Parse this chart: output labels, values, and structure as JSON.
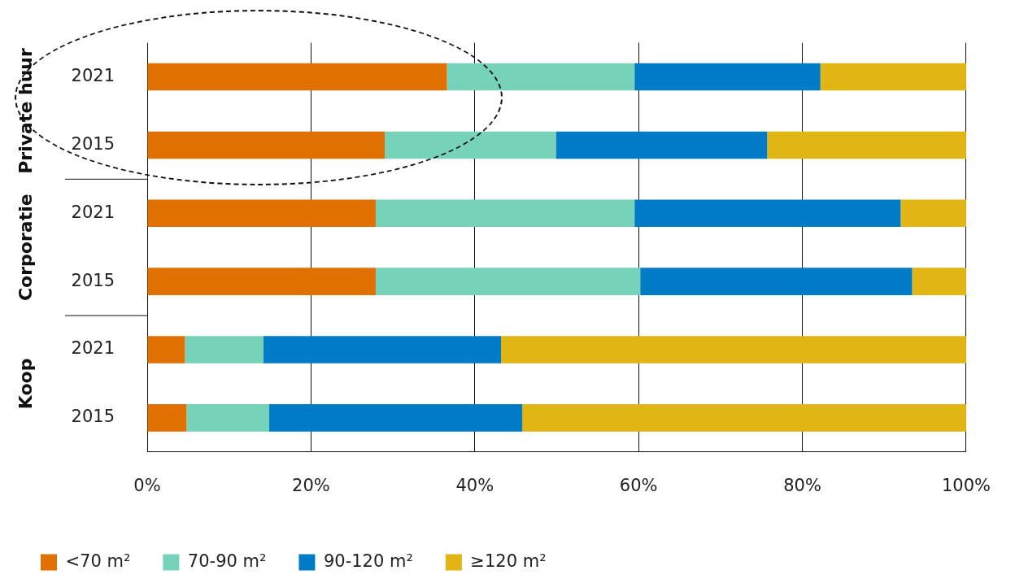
{
  "chart_data": {
    "type": "bar",
    "orientation": "horizontal",
    "stacked": true,
    "categories": [
      "2021",
      "2015",
      "2021",
      "2015",
      "2021",
      "2015"
    ],
    "series": [
      {
        "name": "<70 m²",
        "color": "#e07000",
        "values": [
          36.6,
          29.0,
          27.9,
          27.9,
          4.6,
          4.8
        ]
      },
      {
        "name": "70-90 m²",
        "color": "#76d3b9",
        "values": [
          22.9,
          20.9,
          31.6,
          32.3,
          9.6,
          10.1
        ]
      },
      {
        "name": "90-120 m²",
        "color": "#007cc7",
        "values": [
          22.7,
          25.8,
          32.5,
          33.2,
          29.0,
          30.9
        ]
      },
      {
        "name": "≥120 m²",
        "color": "#e0b514",
        "values": [
          17.8,
          24.3,
          8.0,
          6.6,
          56.8,
          54.2
        ]
      }
    ],
    "xlim": [
      0,
      100
    ],
    "xticks": [
      {
        "value": 0,
        "label": "0%"
      },
      {
        "value": 20,
        "label": "20%"
      },
      {
        "value": 40,
        "label": "40%"
      },
      {
        "value": 60,
        "label": "60%"
      },
      {
        "value": 80,
        "label": "80%"
      },
      {
        "value": 100,
        "label": "100%"
      }
    ],
    "annotations": [
      "Private huur",
      "Corporatie",
      "Koop"
    ],
    "grid": "x",
    "legend": "bottom"
  }
}
